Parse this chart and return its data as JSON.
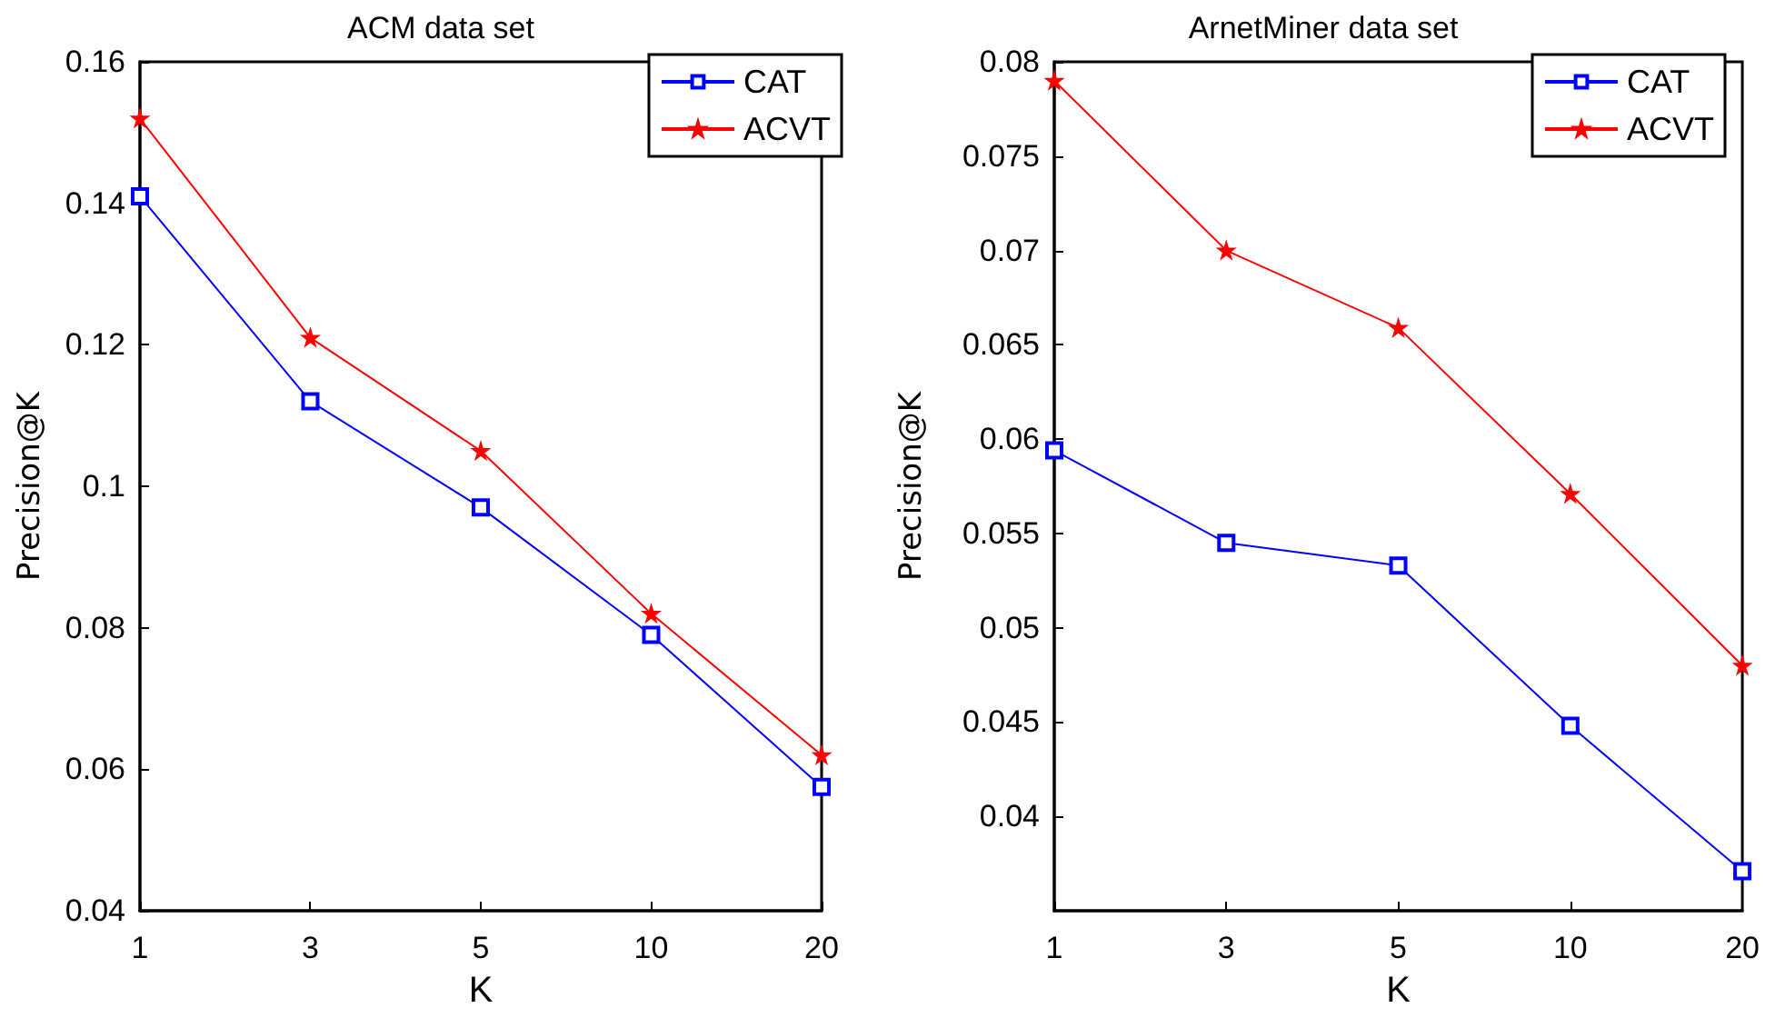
{
  "chart_data": [
    {
      "type": "line",
      "title": "ACM data set",
      "xlabel": "K",
      "ylabel": "Precision@K",
      "categories": [
        "1",
        "3",
        "5",
        "10",
        "20"
      ],
      "ylim": [
        0.04,
        0.16
      ],
      "yticks": [
        0.04,
        0.06,
        0.08,
        0.1,
        0.12,
        0.14,
        0.16
      ],
      "grid": false,
      "legend": "top right",
      "line_style": "solid",
      "series": [
        {
          "name": "CAT",
          "color": "#0000ff",
          "marker": "square",
          "values": [
            0.141,
            0.112,
            0.097,
            0.079,
            0.0575
          ]
        },
        {
          "name": "ACVT",
          "color": "#ff0000",
          "marker": "star",
          "values": [
            0.152,
            0.121,
            0.105,
            0.082,
            0.062
          ]
        }
      ]
    },
    {
      "type": "line",
      "title": "ArnetMiner data set",
      "xlabel": "K",
      "ylabel": "Precision@K",
      "categories": [
        "1",
        "3",
        "5",
        "10",
        "20"
      ],
      "ylim": [
        0.035,
        0.08
      ],
      "yticks": [
        0.04,
        0.045,
        0.05,
        0.055,
        0.06,
        0.065,
        0.07,
        0.075,
        0.08
      ],
      "grid": false,
      "legend": "top right",
      "line_style": "solid",
      "series": [
        {
          "name": "CAT",
          "color": "#0000ff",
          "marker": "square",
          "values": [
            0.0594,
            0.0545,
            0.0533,
            0.0448,
            0.0371
          ]
        },
        {
          "name": "ACVT",
          "color": "#ff0000",
          "marker": "star",
          "values": [
            0.079,
            0.07,
            0.0659,
            0.0571,
            0.048
          ]
        }
      ]
    }
  ]
}
